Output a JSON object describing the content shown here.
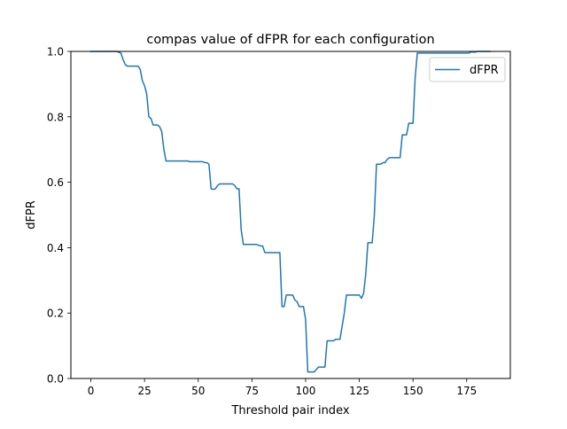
{
  "chart_data": {
    "type": "line",
    "title": "compas value of dFPR for each configuration",
    "xlabel": "Threshold pair index",
    "ylabel": "dFPR",
    "xlim": [
      -9.3,
      195.3
    ],
    "ylim": [
      0.0,
      1.0
    ],
    "xticks": [
      0,
      25,
      50,
      75,
      100,
      125,
      150,
      175
    ],
    "yticks": [
      0.0,
      0.2,
      0.4,
      0.6,
      0.8,
      1.0
    ],
    "xtick_labels": [
      "0",
      "25",
      "50",
      "75",
      "100",
      "125",
      "150",
      "175"
    ],
    "ytick_labels": [
      "0.0",
      "0.2",
      "0.4",
      "0.6",
      "0.8",
      "1.0"
    ],
    "grid": false,
    "legend": {
      "position": "upper right",
      "entries": [
        "dFPR"
      ]
    },
    "series": [
      {
        "name": "dFPR",
        "color": "#1f77b4",
        "x": [
          0,
          12,
          14,
          15,
          16,
          17,
          22,
          23,
          24,
          25,
          26,
          27,
          28,
          29,
          30,
          31,
          32,
          33,
          34,
          35,
          36,
          45,
          46,
          52,
          53,
          54,
          55,
          56,
          57,
          58,
          59,
          60,
          61,
          66,
          67,
          68,
          69,
          70,
          71,
          72,
          76,
          77,
          79,
          80,
          81,
          86,
          87,
          88,
          89,
          90,
          91,
          92,
          93,
          94,
          95,
          96,
          97,
          98,
          99,
          100,
          101,
          103,
          104,
          106,
          107,
          108,
          109,
          110,
          111,
          112,
          113,
          114,
          115,
          116,
          117,
          118,
          119,
          120,
          121,
          122,
          123,
          124,
          125,
          126,
          127,
          128,
          129,
          130,
          131,
          132,
          133,
          134,
          135,
          136,
          137,
          138,
          139,
          140,
          141,
          142,
          143,
          144,
          145,
          146,
          147,
          148,
          149,
          150,
          151,
          152,
          153,
          154,
          160,
          161,
          162,
          175,
          176,
          177,
          178,
          179,
          180,
          181,
          182,
          183,
          184,
          185,
          186
        ],
        "values": [
          1.0,
          1.0,
          0.995,
          0.975,
          0.96,
          0.955,
          0.955,
          0.945,
          0.91,
          0.895,
          0.87,
          0.8,
          0.795,
          0.775,
          0.775,
          0.775,
          0.77,
          0.755,
          0.7,
          0.665,
          0.665,
          0.665,
          0.663,
          0.663,
          0.66,
          0.66,
          0.655,
          0.58,
          0.578,
          0.58,
          0.59,
          0.595,
          0.595,
          0.595,
          0.59,
          0.58,
          0.58,
          0.455,
          0.41,
          0.41,
          0.41,
          0.41,
          0.405,
          0.405,
          0.385,
          0.385,
          0.385,
          0.385,
          0.22,
          0.22,
          0.255,
          0.255,
          0.255,
          0.255,
          0.24,
          0.235,
          0.22,
          0.22,
          0.22,
          0.18,
          0.02,
          0.02,
          0.02,
          0.035,
          0.035,
          0.035,
          0.035,
          0.115,
          0.115,
          0.115,
          0.115,
          0.12,
          0.12,
          0.12,
          0.16,
          0.2,
          0.255,
          0.255,
          0.255,
          0.255,
          0.255,
          0.255,
          0.255,
          0.245,
          0.26,
          0.32,
          0.415,
          0.415,
          0.415,
          0.5,
          0.655,
          0.655,
          0.655,
          0.66,
          0.66,
          0.67,
          0.675,
          0.675,
          0.675,
          0.675,
          0.675,
          0.675,
          0.745,
          0.745,
          0.745,
          0.78,
          0.78,
          0.78,
          0.92,
          0.995,
          0.995,
          0.995,
          0.995,
          0.995,
          0.995,
          0.995,
          0.995,
          0.998,
          0.998,
          0.998,
          1.0,
          1.0,
          1.0,
          1.0,
          1.0,
          1.0,
          1.0
        ]
      }
    ]
  }
}
